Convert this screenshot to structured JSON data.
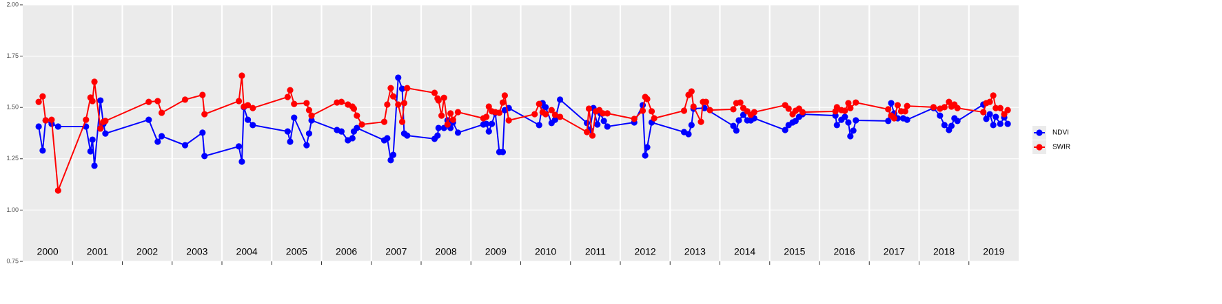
{
  "chart_data": {
    "type": "line",
    "xlim": [
      2000,
      2020
    ],
    "ylim": [
      0.75,
      2.0
    ],
    "yticks": [
      {
        "value": 0.75,
        "label": "0.75"
      },
      {
        "value": 1.0,
        "label": "1.00"
      },
      {
        "value": 1.25,
        "label": "1.25"
      },
      {
        "value": 1.5,
        "label": "1.50"
      },
      {
        "value": 1.75,
        "label": "1.75"
      },
      {
        "value": 2.0,
        "label": "2.00"
      }
    ],
    "xticks": [
      {
        "value": 2000.5,
        "label": "2000"
      },
      {
        "value": 2001.5,
        "label": "2001"
      },
      {
        "value": 2002.5,
        "label": "2002"
      },
      {
        "value": 2003.5,
        "label": "2003"
      },
      {
        "value": 2004.5,
        "label": "2004"
      },
      {
        "value": 2005.5,
        "label": "2005"
      },
      {
        "value": 2006.5,
        "label": "2006"
      },
      {
        "value": 2007.5,
        "label": "2007"
      },
      {
        "value": 2008.5,
        "label": "2008"
      },
      {
        "value": 2009.5,
        "label": "2009"
      },
      {
        "value": 2010.5,
        "label": "2010"
      },
      {
        "value": 2011.5,
        "label": "2011"
      },
      {
        "value": 2012.5,
        "label": "2012"
      },
      {
        "value": 2013.5,
        "label": "2013"
      },
      {
        "value": 2014.5,
        "label": "2014"
      },
      {
        "value": 2015.5,
        "label": "2015"
      },
      {
        "value": 2016.5,
        "label": "2016"
      },
      {
        "value": 2017.5,
        "label": "2017"
      },
      {
        "value": 2018.5,
        "label": "2018"
      },
      {
        "value": 2019.5,
        "label": "2019"
      }
    ],
    "year_lines": [
      2001,
      2002,
      2003,
      2004,
      2005,
      2006,
      2007,
      2008,
      2009,
      2010,
      2011,
      2012,
      2013,
      2014,
      2015,
      2016,
      2017,
      2018,
      2019
    ],
    "grid": true,
    "legend": "right",
    "series": [
      {
        "name": "NDVI",
        "color": "#0000ff",
        "x": [
          2000.32,
          2000.4,
          2000.46,
          2000.58,
          2000.71,
          2001.27,
          2001.36,
          2001.4,
          2001.44,
          2001.56,
          2001.62,
          2001.66,
          2002.53,
          2002.71,
          2002.79,
          2003.26,
          2003.61,
          2003.65,
          2004.34,
          2004.4,
          2004.44,
          2004.52,
          2004.62,
          2005.32,
          2005.37,
          2005.45,
          2005.7,
          2005.75,
          2005.8,
          2006.31,
          2006.4,
          2006.53,
          2006.62,
          2006.65,
          2006.71,
          2007.26,
          2007.32,
          2007.39,
          2007.44,
          2007.54,
          2007.62,
          2007.66,
          2007.72,
          2008.27,
          2008.33,
          2008.35,
          2008.46,
          2008.53,
          2008.59,
          2008.64,
          2008.74,
          2009.25,
          2009.31,
          2009.36,
          2009.42,
          2009.49,
          2009.57,
          2009.64,
          2009.68,
          2009.76,
          2010.37,
          2010.44,
          2010.5,
          2010.62,
          2010.69,
          2010.79,
          2011.33,
          2011.39,
          2011.46,
          2011.54,
          2011.6,
          2011.67,
          2011.74,
          2012.28,
          2012.45,
          2012.5,
          2012.54,
          2012.63,
          2013.28,
          2013.37,
          2013.43,
          2013.47,
          2013.69,
          2014.27,
          2014.33,
          2014.38,
          2014.47,
          2014.55,
          2014.62,
          2014.69,
          2015.31,
          2015.38,
          2015.46,
          2015.52,
          2015.59,
          2015.66,
          2016.32,
          2016.35,
          2016.44,
          2016.51,
          2016.58,
          2016.62,
          2016.68,
          2016.73,
          2017.38,
          2017.44,
          2017.5,
          2017.57,
          2017.68,
          2017.76,
          2018.29,
          2018.42,
          2018.51,
          2018.6,
          2018.65,
          2018.71,
          2018.77,
          2019.29,
          2019.35,
          2019.42,
          2019.49,
          2019.54,
          2019.63,
          2019.71,
          2019.78
        ],
        "values": [
          1.407,
          1.29,
          1.437,
          1.42,
          1.407,
          1.407,
          1.286,
          1.343,
          1.216,
          1.534,
          1.42,
          1.373,
          1.44,
          1.333,
          1.36,
          1.316,
          1.377,
          1.263,
          1.31,
          1.236,
          1.501,
          1.44,
          1.414,
          1.383,
          1.333,
          1.45,
          1.316,
          1.373,
          1.437,
          1.39,
          1.383,
          1.34,
          1.35,
          1.383,
          1.4,
          1.34,
          1.35,
          1.243,
          1.269,
          1.645,
          1.591,
          1.373,
          1.363,
          1.347,
          1.363,
          1.4,
          1.4,
          1.437,
          1.4,
          1.427,
          1.377,
          1.417,
          1.42,
          1.383,
          1.42,
          1.474,
          1.283,
          1.283,
          1.487,
          1.497,
          1.414,
          1.521,
          1.501,
          1.424,
          1.44,
          1.538,
          1.424,
          1.39,
          1.497,
          1.417,
          1.471,
          1.434,
          1.407,
          1.427,
          1.511,
          1.266,
          1.306,
          1.427,
          1.38,
          1.37,
          1.414,
          1.494,
          1.497,
          1.41,
          1.387,
          1.437,
          1.464,
          1.437,
          1.437,
          1.447,
          1.39,
          1.414,
          1.427,
          1.434,
          1.454,
          1.467,
          1.46,
          1.414,
          1.44,
          1.454,
          1.427,
          1.36,
          1.387,
          1.437,
          1.434,
          1.521,
          1.471,
          1.447,
          1.447,
          1.44,
          1.497,
          1.46,
          1.414,
          1.39,
          1.41,
          1.447,
          1.434,
          1.514,
          1.444,
          1.467,
          1.414,
          1.454,
          1.42,
          1.451,
          1.42
        ]
      },
      {
        "name": "SWIR",
        "color": "#ff0000",
        "x": [
          2000.32,
          2000.4,
          2000.46,
          2000.58,
          2000.71,
          2001.27,
          2001.36,
          2001.4,
          2001.44,
          2001.56,
          2001.62,
          2001.66,
          2002.53,
          2002.71,
          2002.79,
          2003.26,
          2003.61,
          2003.65,
          2004.34,
          2004.4,
          2004.44,
          2004.52,
          2004.62,
          2005.32,
          2005.37,
          2005.45,
          2005.7,
          2005.75,
          2005.8,
          2006.31,
          2006.4,
          2006.53,
          2006.62,
          2006.65,
          2006.71,
          2006.81,
          2007.26,
          2007.32,
          2007.39,
          2007.44,
          2007.54,
          2007.62,
          2007.66,
          2007.72,
          2008.27,
          2008.33,
          2008.35,
          2008.41,
          2008.46,
          2008.53,
          2008.59,
          2008.64,
          2008.74,
          2009.25,
          2009.31,
          2009.36,
          2009.42,
          2009.49,
          2009.57,
          2009.64,
          2009.68,
          2009.76,
          2010.28,
          2010.37,
          2010.44,
          2010.5,
          2010.62,
          2010.69,
          2010.79,
          2011.33,
          2011.37,
          2011.44,
          2011.51,
          2011.58,
          2011.65,
          2011.74,
          2012.28,
          2012.45,
          2012.5,
          2012.54,
          2012.63,
          2012.68,
          2013.28,
          2013.37,
          2013.43,
          2013.47,
          2013.62,
          2013.66,
          2013.72,
          2013.8,
          2014.27,
          2014.33,
          2014.41,
          2014.47,
          2014.55,
          2014.62,
          2014.69,
          2015.31,
          2015.38,
          2015.46,
          2015.52,
          2015.59,
          2015.66,
          2016.32,
          2016.35,
          2016.44,
          2016.51,
          2016.58,
          2016.62,
          2016.73,
          2017.38,
          2017.44,
          2017.5,
          2017.57,
          2017.64,
          2017.72,
          2017.76,
          2018.29,
          2018.42,
          2018.51,
          2018.6,
          2018.65,
          2018.71,
          2018.77,
          2019.29,
          2019.35,
          2019.42,
          2019.49,
          2019.54,
          2019.63,
          2019.71,
          2019.78
        ],
        "values": [
          1.527,
          1.554,
          1.437,
          1.44,
          1.095,
          1.44,
          1.548,
          1.531,
          1.625,
          1.397,
          1.43,
          1.434,
          1.527,
          1.531,
          1.474,
          1.538,
          1.561,
          1.467,
          1.531,
          1.655,
          1.504,
          1.511,
          1.497,
          1.551,
          1.584,
          1.517,
          1.521,
          1.487,
          1.46,
          1.524,
          1.527,
          1.514,
          1.504,
          1.494,
          1.46,
          1.417,
          1.43,
          1.514,
          1.594,
          1.554,
          1.514,
          1.43,
          1.521,
          1.594,
          1.571,
          1.544,
          1.534,
          1.46,
          1.547,
          1.417,
          1.471,
          1.44,
          1.477,
          1.447,
          1.454,
          1.504,
          1.481,
          1.477,
          1.474,
          1.524,
          1.558,
          1.437,
          1.467,
          1.517,
          1.477,
          1.467,
          1.487,
          1.464,
          1.454,
          1.38,
          1.494,
          1.363,
          1.481,
          1.487,
          1.471,
          1.471,
          1.444,
          1.484,
          1.551,
          1.541,
          1.481,
          1.447,
          1.484,
          1.561,
          1.578,
          1.504,
          1.43,
          1.527,
          1.527,
          1.487,
          1.491,
          1.521,
          1.524,
          1.497,
          1.481,
          1.464,
          1.477,
          1.511,
          1.494,
          1.467,
          1.484,
          1.494,
          1.477,
          1.481,
          1.501,
          1.487,
          1.484,
          1.521,
          1.497,
          1.524,
          1.491,
          1.46,
          1.447,
          1.511,
          1.481,
          1.481,
          1.507,
          1.501,
          1.494,
          1.501,
          1.527,
          1.504,
          1.514,
          1.497,
          1.477,
          1.521,
          1.527,
          1.558,
          1.497,
          1.497,
          1.467,
          1.487
        ]
      }
    ]
  }
}
